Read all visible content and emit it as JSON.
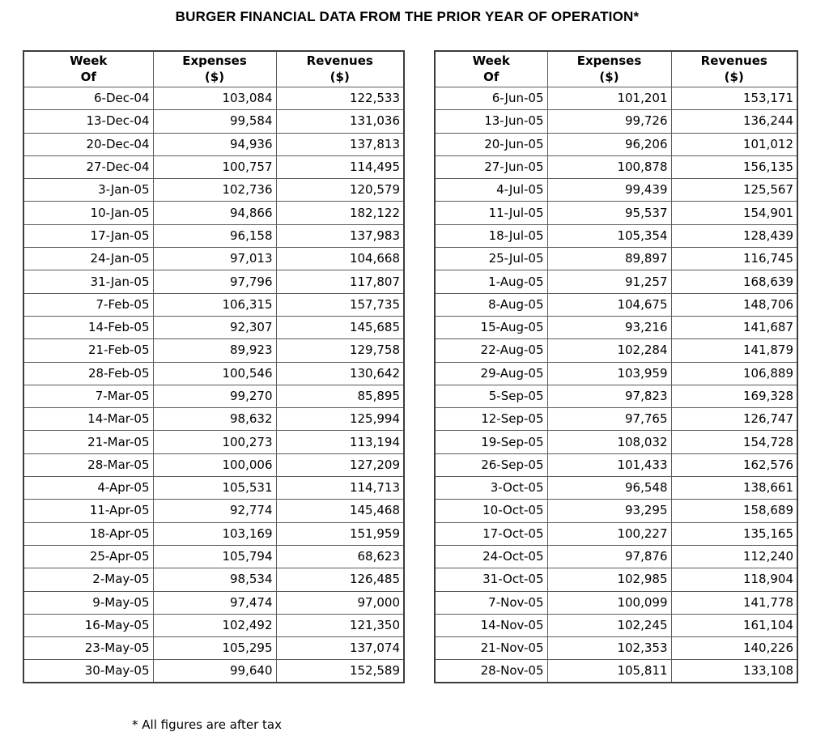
{
  "title": "BURGER FINANCIAL DATA FROM THE PRIOR YEAR OF OPERATION*",
  "footnote": "* All figures are after tax",
  "column_headers": [
    {
      "line1": "Week",
      "line2": "Of"
    },
    {
      "line1": "Expenses",
      "line2": "($)"
    },
    {
      "line1": "Revenues",
      "line2": "($)"
    }
  ],
  "chart_data": {
    "type": "table",
    "title": "BURGER FINANCIAL DATA FROM THE PRIOR YEAR OF OPERATION*",
    "footnote": "* All figures are after tax",
    "columns": [
      "Week Of",
      "Expenses ($)",
      "Revenues ($)"
    ],
    "tables": [
      {
        "rows": [
          [
            "6-Dec-04",
            "103,084",
            "122,533"
          ],
          [
            "13-Dec-04",
            "99,584",
            "131,036"
          ],
          [
            "20-Dec-04",
            "94,936",
            "137,813"
          ],
          [
            "27-Dec-04",
            "100,757",
            "114,495"
          ],
          [
            "3-Jan-05",
            "102,736",
            "120,579"
          ],
          [
            "10-Jan-05",
            "94,866",
            "182,122"
          ],
          [
            "17-Jan-05",
            "96,158",
            "137,983"
          ],
          [
            "24-Jan-05",
            "97,013",
            "104,668"
          ],
          [
            "31-Jan-05",
            "97,796",
            "117,807"
          ],
          [
            "7-Feb-05",
            "106,315",
            "157,735"
          ],
          [
            "14-Feb-05",
            "92,307",
            "145,685"
          ],
          [
            "21-Feb-05",
            "89,923",
            "129,758"
          ],
          [
            "28-Feb-05",
            "100,546",
            "130,642"
          ],
          [
            "7-Mar-05",
            "99,270",
            "85,895"
          ],
          [
            "14-Mar-05",
            "98,632",
            "125,994"
          ],
          [
            "21-Mar-05",
            "100,273",
            "113,194"
          ],
          [
            "28-Mar-05",
            "100,006",
            "127,209"
          ],
          [
            "4-Apr-05",
            "105,531",
            "114,713"
          ],
          [
            "11-Apr-05",
            "92,774",
            "145,468"
          ],
          [
            "18-Apr-05",
            "103,169",
            "151,959"
          ],
          [
            "25-Apr-05",
            "105,794",
            "68,623"
          ],
          [
            "2-May-05",
            "98,534",
            "126,485"
          ],
          [
            "9-May-05",
            "97,474",
            "97,000"
          ],
          [
            "16-May-05",
            "102,492",
            "121,350"
          ],
          [
            "23-May-05",
            "105,295",
            "137,074"
          ],
          [
            "30-May-05",
            "99,640",
            "152,589"
          ]
        ]
      },
      {
        "rows": [
          [
            "6-Jun-05",
            "101,201",
            "153,171"
          ],
          [
            "13-Jun-05",
            "99,726",
            "136,244"
          ],
          [
            "20-Jun-05",
            "96,206",
            "101,012"
          ],
          [
            "27-Jun-05",
            "100,878",
            "156,135"
          ],
          [
            "4-Jul-05",
            "99,439",
            "125,567"
          ],
          [
            "11-Jul-05",
            "95,537",
            "154,901"
          ],
          [
            "18-Jul-05",
            "105,354",
            "128,439"
          ],
          [
            "25-Jul-05",
            "89,897",
            "116,745"
          ],
          [
            "1-Aug-05",
            "91,257",
            "168,639"
          ],
          [
            "8-Aug-05",
            "104,675",
            "148,706"
          ],
          [
            "15-Aug-05",
            "93,216",
            "141,687"
          ],
          [
            "22-Aug-05",
            "102,284",
            "141,879"
          ],
          [
            "29-Aug-05",
            "103,959",
            "106,889"
          ],
          [
            "5-Sep-05",
            "97,823",
            "169,328"
          ],
          [
            "12-Sep-05",
            "97,765",
            "126,747"
          ],
          [
            "19-Sep-05",
            "108,032",
            "154,728"
          ],
          [
            "26-Sep-05",
            "101,433",
            "162,576"
          ],
          [
            "3-Oct-05",
            "96,548",
            "138,661"
          ],
          [
            "10-Oct-05",
            "93,295",
            "158,689"
          ],
          [
            "17-Oct-05",
            "100,227",
            "135,165"
          ],
          [
            "24-Oct-05",
            "97,876",
            "112,240"
          ],
          [
            "31-Oct-05",
            "102,985",
            "118,904"
          ],
          [
            "7-Nov-05",
            "100,099",
            "141,778"
          ],
          [
            "14-Nov-05",
            "102,245",
            "161,104"
          ],
          [
            "21-Nov-05",
            "102,353",
            "140,226"
          ],
          [
            "28-Nov-05",
            "105,811",
            "133,108"
          ]
        ]
      }
    ]
  }
}
